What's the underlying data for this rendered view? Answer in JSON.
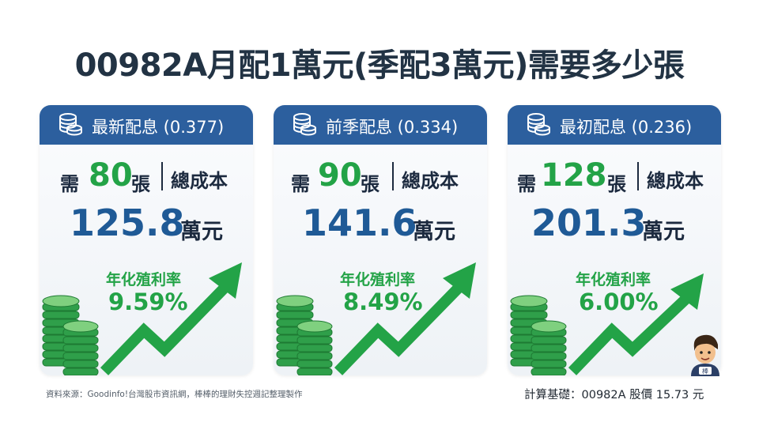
{
  "title": "00982A月配1萬元(季配3萬元)需要多少張",
  "cards": [
    {
      "header": "最新配息 (0.377)",
      "need_word": "需",
      "count": "80",
      "sheet_word": "張",
      "cost_label": "總成本",
      "cost_value": "125.8",
      "cost_unit": "萬元",
      "yield_label": "年化殖利率",
      "yield_value": "9.59%",
      "icon": "coins-stack-icon"
    },
    {
      "header": "前季配息 (0.334)",
      "need_word": "需",
      "count": "90",
      "sheet_word": "張",
      "cost_label": "總成本",
      "cost_value": "141.6",
      "cost_unit": "萬元",
      "yield_label": "年化殖利率",
      "yield_value": "8.49%",
      "icon": "coins-stack-icon"
    },
    {
      "header": "最初配息 (0.236)",
      "need_word": "需",
      "count": "128",
      "sheet_word": "張",
      "cost_label": "總成本",
      "cost_value": "201.3",
      "cost_unit": "萬元",
      "yield_label": "年化殖利率",
      "yield_value": "6.00%",
      "icon": "coins-stack-icon"
    }
  ],
  "mascot_badge": "棒",
  "footer_source": "資料來源：Goodinfo!台灣股市資訊網，棒棒的理財失控週記整理製作",
  "footer_basis": "計算基礎：00982A 股價 15.73 元",
  "colors": {
    "header_blue": "#2c5f9e",
    "cost_blue": "#1f5a96",
    "accent_green": "#23a347",
    "title_dark": "#223344"
  }
}
